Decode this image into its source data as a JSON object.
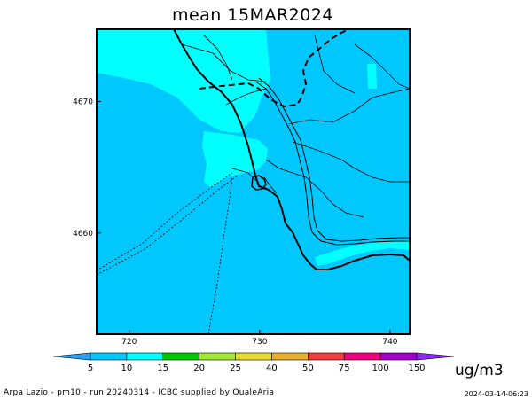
{
  "title": "mean 15MAR2024",
  "map": {
    "x_ticks": [
      {
        "value": 720,
        "label": "720"
      },
      {
        "value": 730,
        "label": "730"
      },
      {
        "value": 740,
        "label": "740"
      }
    ],
    "y_ticks": [
      {
        "value": 4670,
        "label": "4670"
      },
      {
        "value": 4660,
        "label": "4660"
      }
    ],
    "x_range": [
      717.5,
      741.5
    ],
    "y_range": [
      4652.3,
      4675.5
    ],
    "colors": {
      "background_field": "#00c8ff",
      "low_field": "#00ffff",
      "coast": "#000000",
      "border": "#000000"
    }
  },
  "colorbar": {
    "units": "ug/m3",
    "classes": [
      {
        "label": "5",
        "color": "#2ba0f0"
      },
      {
        "label": "10",
        "color": "#00c8ff"
      },
      {
        "label": "15",
        "color": "#00ffff"
      },
      {
        "label": "20",
        "color": "#00c800"
      },
      {
        "label": "25",
        "color": "#a0e632"
      },
      {
        "label": "40",
        "color": "#e6dc32"
      },
      {
        "label": "50",
        "color": "#e6af2d"
      },
      {
        "label": "75",
        "color": "#f03c3c"
      },
      {
        "label": "100",
        "color": "#f0007f"
      },
      {
        "label": "150",
        "color": "#a000c8"
      },
      {
        "label": "",
        "color": "#8c2cf0"
      }
    ]
  },
  "footer": {
    "left": "Arpa Lazio - pm10 - run 20240314 - ICBC supplied by QualeAria",
    "right": "2024-03-14-06:23"
  }
}
